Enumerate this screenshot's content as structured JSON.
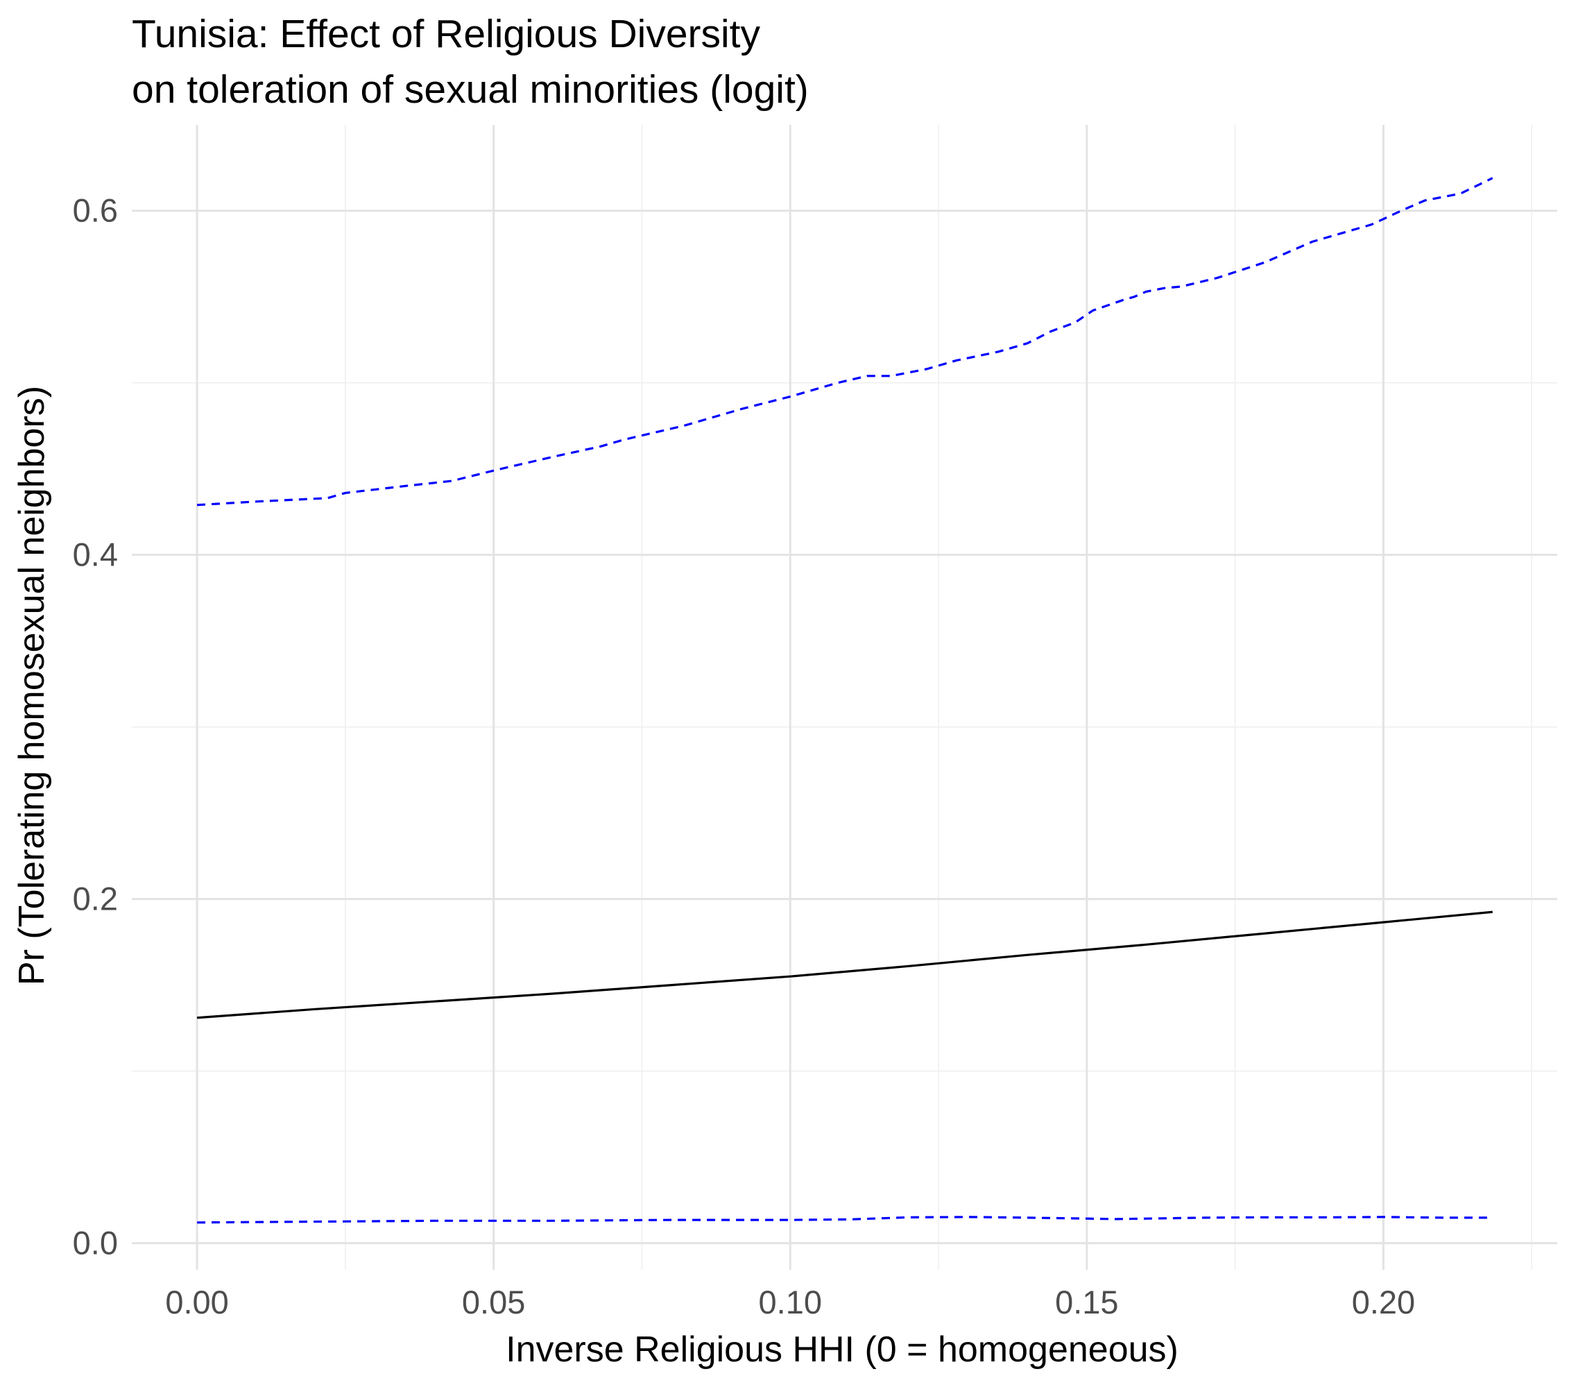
{
  "colors": {
    "background": "#ffffff",
    "grid_major": "#e3e3e3",
    "grid_minor": "#efefef",
    "main_line": "#000000",
    "bound_line": "#0000ff",
    "tick_text": "#4d4d4d",
    "title_text": "#000000"
  },
  "chart_data": {
    "type": "line",
    "title": "Tunisia: Effect of Religious Diversity",
    "subtitle": "on toleration of sexual minorities (logit)",
    "xlabel": "Inverse Religious HHI (0 = homogeneous)",
    "ylabel": "Pr (Tolerating homosexual neighbors)",
    "xlim": [
      -0.011,
      0.2293
    ],
    "ylim": [
      -0.0155,
      0.6499
    ],
    "x_ticks": [
      0.0,
      0.05,
      0.1,
      0.15,
      0.2
    ],
    "x_tick_labels": [
      "0.00",
      "0.05",
      "0.10",
      "0.15",
      "0.20"
    ],
    "y_ticks": [
      0.0,
      0.2,
      0.4,
      0.6
    ],
    "y_tick_labels": [
      "0.0",
      "0.2",
      "0.4",
      "0.6"
    ],
    "grid": true,
    "legend": "none",
    "series": [
      {
        "role": "estimate",
        "color": "#000000",
        "style": "solid",
        "x": [
          0.0,
          0.02,
          0.04,
          0.06,
          0.08,
          0.1,
          0.12,
          0.14,
          0.16,
          0.18,
          0.2,
          0.2184
        ],
        "y": [
          0.131,
          0.136,
          0.1405,
          0.145,
          0.15,
          0.155,
          0.161,
          0.1675,
          0.1735,
          0.18,
          0.1865,
          0.1925
        ]
      },
      {
        "role": "upper_bound",
        "color": "#0000ff",
        "style": "dashed",
        "x": [
          0.0,
          0.01,
          0.022,
          0.025,
          0.035,
          0.043,
          0.05,
          0.06,
          0.068,
          0.072,
          0.082,
          0.092,
          0.1,
          0.108,
          0.113,
          0.117,
          0.123,
          0.128,
          0.135,
          0.14,
          0.144,
          0.148,
          0.151,
          0.156,
          0.158,
          0.16,
          0.163,
          0.166,
          0.172,
          0.18,
          0.184,
          0.188,
          0.192,
          0.198,
          0.203,
          0.207,
          0.213,
          0.2184
        ],
        "y": [
          0.429,
          0.431,
          0.433,
          0.436,
          0.44,
          0.443,
          0.449,
          0.457,
          0.463,
          0.467,
          0.475,
          0.485,
          0.492,
          0.5,
          0.504,
          0.504,
          0.508,
          0.513,
          0.518,
          0.523,
          0.53,
          0.535,
          0.542,
          0.548,
          0.55,
          0.553,
          0.555,
          0.556,
          0.561,
          0.57,
          0.576,
          0.582,
          0.586,
          0.592,
          0.6,
          0.606,
          0.61,
          0.619
        ]
      },
      {
        "role": "lower_bound",
        "color": "#0000ff",
        "style": "dashed",
        "x": [
          0.0,
          0.02,
          0.04,
          0.06,
          0.08,
          0.1,
          0.11,
          0.12,
          0.13,
          0.14,
          0.155,
          0.17,
          0.18,
          0.19,
          0.2,
          0.21,
          0.2184
        ],
        "y": [
          0.012,
          0.0125,
          0.013,
          0.013,
          0.0135,
          0.0135,
          0.0138,
          0.015,
          0.0152,
          0.0148,
          0.014,
          0.0148,
          0.015,
          0.015,
          0.0152,
          0.0148,
          0.0148
        ]
      }
    ]
  }
}
